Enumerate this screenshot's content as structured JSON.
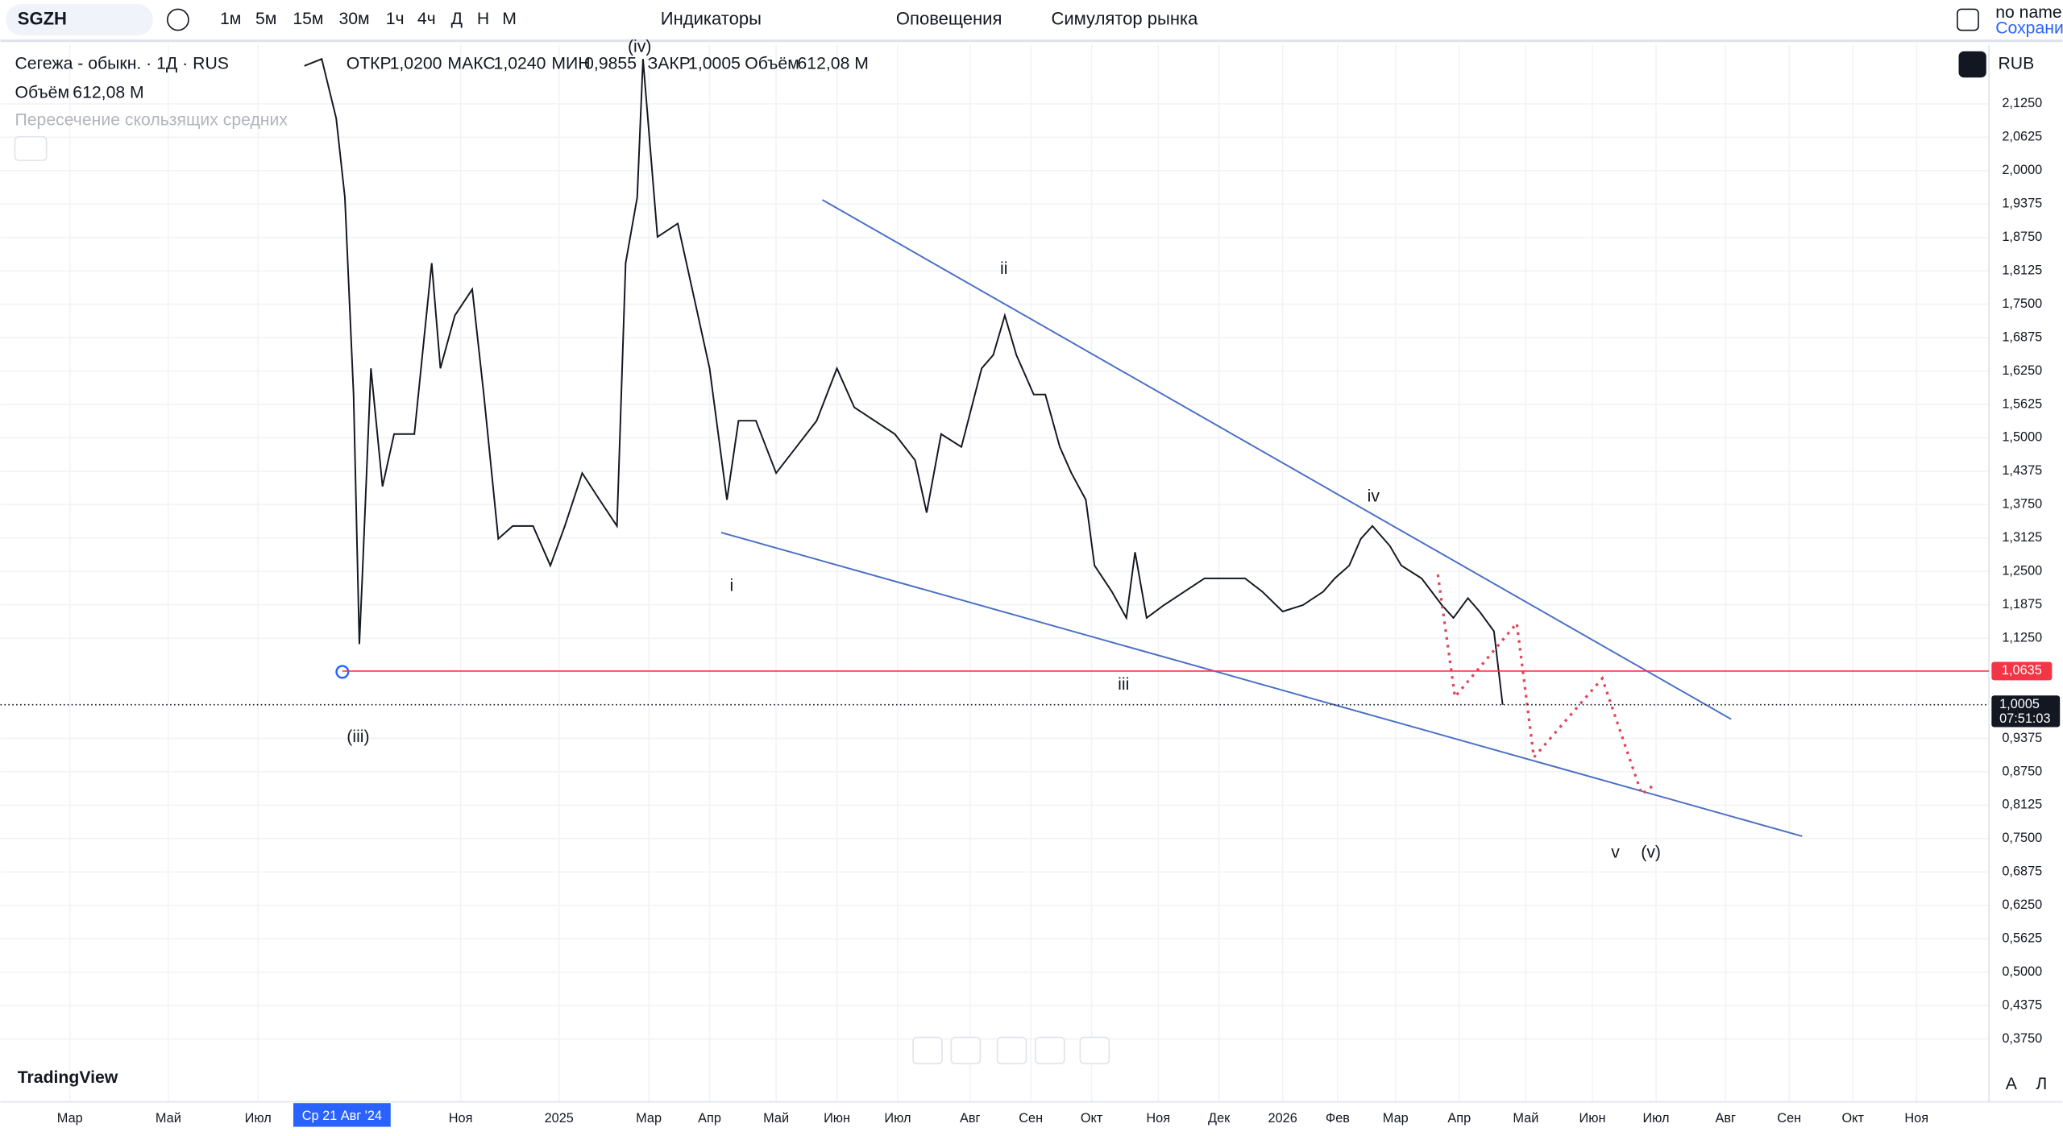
{
  "toolbar": {
    "symbol": "SGZH",
    "intervals": [
      "1м",
      "5м",
      "15м",
      "30м",
      "1ч",
      "4ч",
      "Д",
      "Н",
      "М"
    ],
    "indicators": "Индикаторы",
    "alerts": "Оповещения",
    "replay": "Симулятор рынка",
    "account": "no name",
    "save": "Сохранить"
  },
  "legend": {
    "title": "Сегежа - обыкн. · 1Д · RUS",
    "open_label": "ОТКР",
    "open": "1,0200",
    "high_label": "МАКС",
    "high": "1,0240",
    "low_label": "МИН",
    "low": "0,9855",
    "close_label": "ЗАКР",
    "close": "1,0005",
    "volume_label": "Объём",
    "volume": "612,08 M",
    "volume_row_label": "Объём",
    "volume_row": "612,08 M",
    "indicator": "Пересечение скользящих средних"
  },
  "chart_data": {
    "type": "line",
    "color": "#131722",
    "x": [
      105,
      111,
      116,
      119,
      122,
      124,
      125,
      128,
      132,
      136,
      143,
      149,
      152,
      157,
      163,
      167,
      172,
      177,
      184,
      190,
      195,
      201,
      207,
      213,
      216,
      220,
      222,
      227,
      234,
      241,
      245,
      251,
      255,
      261,
      268,
      275,
      282,
      289,
      295,
      302,
      309,
      316,
      320,
      325,
      332,
      339,
      343,
      347,
      351,
      357,
      361,
      366,
      370,
      375,
      378,
      384,
      389,
      392,
      396,
      402,
      409,
      416,
      423,
      430,
      436,
      443,
      450,
      457,
      461,
      466,
      470,
      474,
      480,
      484,
      491,
      498,
      502,
      507,
      511,
      516,
      519
    ],
    "values": [
      2.196,
      2.209,
      2.098,
      1.95,
      1.581,
      1.114,
      1.237,
      1.63,
      1.409,
      1.507,
      1.507,
      1.827,
      1.63,
      1.729,
      1.778,
      1.581,
      1.311,
      1.335,
      1.335,
      1.261,
      1.335,
      1.434,
      1.384,
      1.335,
      1.827,
      1.95,
      2.209,
      1.876,
      1.901,
      1.729,
      1.63,
      1.384,
      1.532,
      1.532,
      1.434,
      1.483,
      1.532,
      1.63,
      1.557,
      1.532,
      1.507,
      1.458,
      1.36,
      1.507,
      1.483,
      1.63,
      1.655,
      1.729,
      1.655,
      1.581,
      1.581,
      1.483,
      1.434,
      1.384,
      1.261,
      1.212,
      1.163,
      1.286,
      1.163,
      1.187,
      1.212,
      1.237,
      1.237,
      1.237,
      1.212,
      1.175,
      1.187,
      1.212,
      1.237,
      1.261,
      1.311,
      1.335,
      1.298,
      1.261,
      1.237,
      1.187,
      1.163,
      1.2,
      1.175,
      1.138,
      1.0005
    ],
    "xlim": [
      0,
      687
    ],
    "ylim": [
      0.2574,
      2.2357
    ],
    "grid": true,
    "yticks": [
      {
        "value": 2.125,
        "label": "2,1250"
      },
      {
        "value": 2.0625,
        "label": "2,0625"
      },
      {
        "value": 2.0,
        "label": "2,0000"
      },
      {
        "value": 1.9375,
        "label": "1,9375"
      },
      {
        "value": 1.875,
        "label": "1,8750"
      },
      {
        "value": 1.8125,
        "label": "1,8125"
      },
      {
        "value": 1.75,
        "label": "1,7500"
      },
      {
        "value": 1.6875,
        "label": "1,6875"
      },
      {
        "value": 1.625,
        "label": "1,6250"
      },
      {
        "value": 1.5625,
        "label": "1,5625"
      },
      {
        "value": 1.5,
        "label": "1,5000"
      },
      {
        "value": 1.4375,
        "label": "1,4375"
      },
      {
        "value": 1.375,
        "label": "1,3750"
      },
      {
        "value": 1.3125,
        "label": "1,3125"
      },
      {
        "value": 1.25,
        "label": "1,2500"
      },
      {
        "value": 1.1875,
        "label": "1,1875"
      },
      {
        "value": 1.125,
        "label": "1,1250"
      },
      {
        "value": 0.9375,
        "label": "0,9375"
      },
      {
        "value": 0.875,
        "label": "0,8750"
      },
      {
        "value": 0.8125,
        "label": "0,8125"
      },
      {
        "value": 0.75,
        "label": "0,7500"
      },
      {
        "value": 0.6875,
        "label": "0,6875"
      },
      {
        "value": 0.625,
        "label": "0,6250"
      },
      {
        "value": 0.5625,
        "label": "0,5625"
      },
      {
        "value": 0.5,
        "label": "0,5000"
      },
      {
        "value": 0.4375,
        "label": "0,4375"
      },
      {
        "value": 0.375,
        "label": "0,3750"
      }
    ],
    "xticks": [
      {
        "value": 24,
        "label": "Мар"
      },
      {
        "value": 58,
        "label": "Май"
      },
      {
        "value": 89,
        "label": "Июл"
      },
      {
        "value": 159,
        "label": "Ноя"
      },
      {
        "value": 193,
        "label": "2025"
      },
      {
        "value": 224,
        "label": "Мар"
      },
      {
        "value": 245,
        "label": "Апр"
      },
      {
        "value": 268,
        "label": "Май"
      },
      {
        "value": 289,
        "label": "Июн"
      },
      {
        "value": 310,
        "label": "Июл"
      },
      {
        "value": 335,
        "label": "Авг"
      },
      {
        "value": 356,
        "label": "Сен"
      },
      {
        "value": 377,
        "label": "Окт"
      },
      {
        "value": 400,
        "label": "Ноя"
      },
      {
        "value": 421,
        "label": "Дек"
      },
      {
        "value": 443,
        "label": "2026"
      },
      {
        "value": 462,
        "label": "Фев"
      },
      {
        "value": 482,
        "label": "Мар"
      },
      {
        "value": 504,
        "label": "Апр"
      },
      {
        "value": 527,
        "label": "Май"
      },
      {
        "value": 550,
        "label": "Июн"
      },
      {
        "value": 572,
        "label": "Июл"
      },
      {
        "value": 596,
        "label": "Авг"
      },
      {
        "value": 618,
        "label": "Сен"
      },
      {
        "value": 640,
        "label": "Окт"
      },
      {
        "value": 662,
        "label": "Ноя"
      }
    ],
    "cursor_x": {
      "value": 118,
      "label": "Ср 21 Авг '24"
    },
    "level_line": {
      "value": 1.0635,
      "label": "1,0635",
      "color": "#f23645"
    },
    "last_price": {
      "value": 1.0005,
      "label": "1,0005",
      "countdown": "07:51:03"
    },
    "currency": "RUB",
    "annotations": [
      "(iii)",
      "(iv)",
      "i",
      "ii",
      "iii",
      "iv",
      "v",
      "(v)"
    ]
  },
  "bottom": {
    "logo": "TradingView",
    "scale_auto": "A",
    "scale_log": "Л"
  }
}
